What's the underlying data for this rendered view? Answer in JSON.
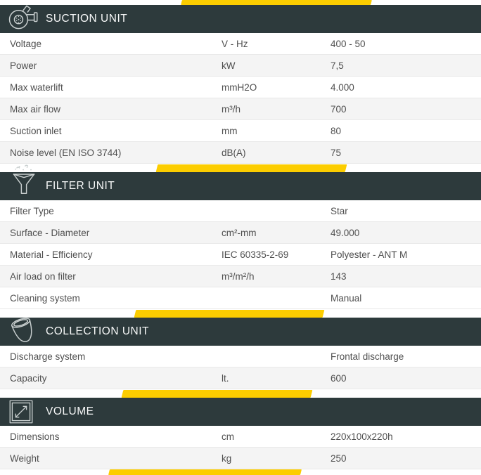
{
  "colors": {
    "header_bg": "#2d3a3c",
    "accent_yellow": "#fccd00",
    "row_alt": "#f4f4f4",
    "text": "#4f4f4f"
  },
  "sections": [
    {
      "title": "SUCTION UNIT",
      "icon": "blower-icon",
      "rows": [
        {
          "label": "Voltage",
          "unit": "V - Hz",
          "value": "400 - 50"
        },
        {
          "label": "Power",
          "unit": "kW",
          "value": "7,5"
        },
        {
          "label": "Max waterlift",
          "unit": "mmH2O",
          "value": "4.000"
        },
        {
          "label": "Max air flow",
          "unit": "m³/h",
          "value": "700"
        },
        {
          "label": "Suction inlet",
          "unit": "mm",
          "value": "80"
        },
        {
          "label": "Noise level (EN ISO 3744)",
          "unit": "dB(A)",
          "value": "75"
        }
      ]
    },
    {
      "title": "FILTER UNIT",
      "icon": "funnel-icon",
      "rows": [
        {
          "label": "Filter Type",
          "unit": "",
          "value": "Star"
        },
        {
          "label": "Surface - Diameter",
          "unit": "cm²-mm",
          "value": "49.000"
        },
        {
          "label": "Material - Efficiency",
          "unit": "IEC 60335-2-69",
          "value": "Polyester - ANT M"
        },
        {
          "label": "Air load on filter",
          "unit": "m³/m²/h",
          "value": "143"
        },
        {
          "label": "Cleaning system",
          "unit": "",
          "value": "Manual"
        }
      ]
    },
    {
      "title": "COLLECTION UNIT",
      "icon": "bucket-icon",
      "rows": [
        {
          "label": "Discharge system",
          "unit": "",
          "value": "Frontal discharge"
        },
        {
          "label": "Capacity",
          "unit": "lt.",
          "value": "600"
        }
      ]
    },
    {
      "title": "VOLUME",
      "icon": "dimensions-icon",
      "rows": [
        {
          "label": "Dimensions",
          "unit": "cm",
          "value": "220x100x220h"
        },
        {
          "label": "Weight",
          "unit": "kg",
          "value": "250"
        }
      ]
    }
  ]
}
